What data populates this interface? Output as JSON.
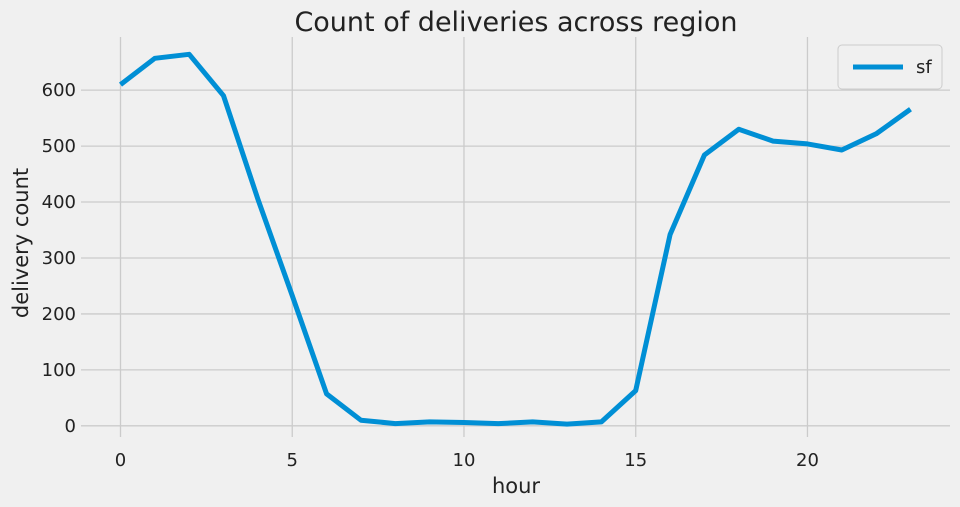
{
  "chart_data": {
    "type": "line",
    "title": "Count of deliveries across region",
    "xlabel": "hour",
    "ylabel": "delivery count",
    "xlim": [
      -1.15,
      24.15
    ],
    "ylim": [
      -20,
      695
    ],
    "xticks": [
      0,
      5,
      10,
      15,
      20
    ],
    "yticks": [
      0,
      100,
      200,
      300,
      400,
      500,
      600
    ],
    "grid": true,
    "legend_position": "top-right",
    "series": [
      {
        "name": "sf",
        "color": "#008fd5",
        "x": [
          0,
          1,
          2,
          3,
          4,
          5,
          6,
          7,
          8,
          9,
          10,
          11,
          12,
          13,
          14,
          15,
          16,
          17,
          18,
          19,
          20,
          21,
          22,
          23
        ],
        "values": [
          610,
          657,
          664,
          590,
          405,
          233,
          57,
          10,
          4,
          7,
          6,
          4,
          7,
          3,
          7,
          63,
          342,
          484,
          530,
          509,
          504,
          493,
          522,
          566
        ]
      }
    ]
  }
}
